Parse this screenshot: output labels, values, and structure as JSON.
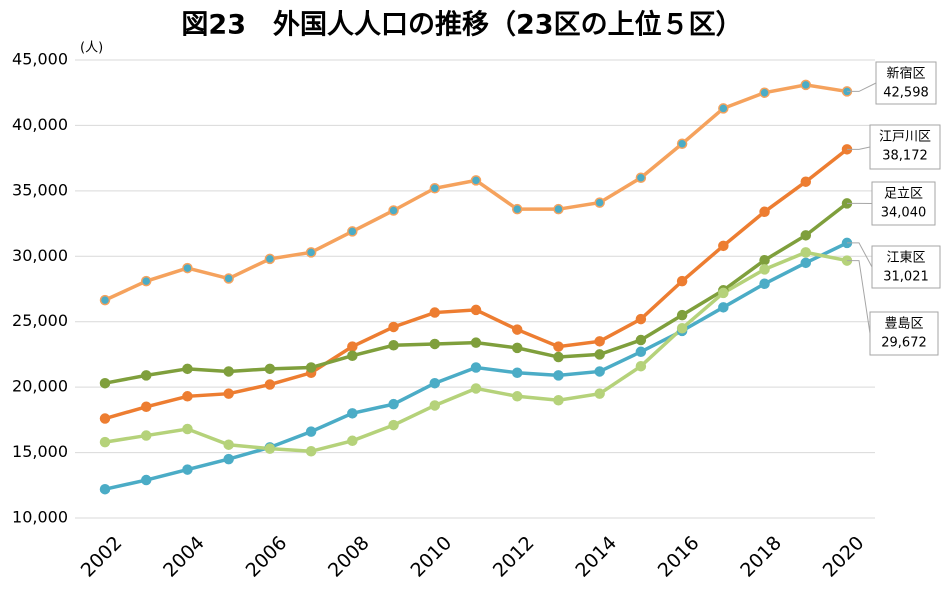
{
  "chart_data": {
    "type": "line",
    "title": "図23　外国人人口の推移（23区の上位５区）",
    "y_unit": "(人)",
    "x": [
      2002,
      2003,
      2004,
      2005,
      2006,
      2007,
      2008,
      2009,
      2010,
      2011,
      2012,
      2013,
      2014,
      2015,
      2016,
      2017,
      2018,
      2019,
      2020
    ],
    "xlim": [
      2002,
      2020
    ],
    "xticks": [
      2002,
      2004,
      2006,
      2008,
      2010,
      2012,
      2014,
      2016,
      2018,
      2020
    ],
    "ylim": [
      10000,
      45000
    ],
    "yticks": [
      {
        "value": 10000,
        "label": "10,000"
      },
      {
        "value": 15000,
        "label": "15,000"
      },
      {
        "value": 20000,
        "label": "20,000"
      },
      {
        "value": 25000,
        "label": "25,000"
      },
      {
        "value": 30000,
        "label": "30,000"
      },
      {
        "value": 35000,
        "label": "35,000"
      },
      {
        "value": 40000,
        "label": "40,000"
      },
      {
        "value": 45000,
        "label": "45,000"
      }
    ],
    "grid": true,
    "series": [
      {
        "name": "新宿区",
        "color": "#f5a25d",
        "marker_color": "#4bacc6",
        "values": [
          26650,
          28100,
          29100,
          28300,
          29800,
          30300,
          31900,
          33500,
          35200,
          35800,
          33600,
          33600,
          34100,
          36000,
          38600,
          41300,
          42500,
          43100,
          42598
        ],
        "value_labels": [
          null,
          null,
          null,
          null,
          null,
          null,
          null,
          null,
          null,
          null,
          null,
          null,
          null,
          null,
          null,
          null,
          null,
          null,
          "42,598"
        ]
      },
      {
        "name": "江戸川区",
        "color": "#ed7d31",
        "marker_color": "#ed7d31",
        "values": [
          17600,
          18500,
          19300,
          19500,
          20200,
          21100,
          23100,
          24600,
          25700,
          25900,
          24400,
          23100,
          23500,
          25200,
          28100,
          30800,
          33400,
          35700,
          38172
        ],
        "value_labels": [
          null,
          null,
          null,
          null,
          null,
          null,
          null,
          null,
          null,
          null,
          null,
          null,
          null,
          null,
          null,
          null,
          null,
          null,
          "38,172"
        ]
      },
      {
        "name": "足立区",
        "color": "#7f9f3c",
        "marker_color": "#7f9f3c",
        "values": [
          20300,
          20900,
          21400,
          21200,
          21400,
          21500,
          22400,
          23200,
          23300,
          23400,
          23000,
          22300,
          22500,
          23600,
          25500,
          27400,
          29700,
          31600,
          34040
        ],
        "value_labels": [
          null,
          null,
          null,
          null,
          null,
          null,
          null,
          null,
          null,
          null,
          null,
          null,
          null,
          null,
          null,
          null,
          null,
          null,
          "34,040"
        ]
      },
      {
        "name": "江東区",
        "color": "#4bacc6",
        "marker_color": "#4bacc6",
        "values": [
          12200,
          12900,
          13700,
          14500,
          15400,
          16600,
          18000,
          18700,
          20300,
          21500,
          21100,
          20900,
          21200,
          22700,
          24300,
          26100,
          27900,
          29500,
          31021
        ],
        "value_labels": [
          null,
          null,
          null,
          null,
          null,
          null,
          null,
          null,
          null,
          null,
          null,
          null,
          null,
          null,
          null,
          null,
          null,
          null,
          "31,021"
        ]
      },
      {
        "name": "豊島区",
        "color": "#b5d27a",
        "marker_color": "#b5d27a",
        "values": [
          15800,
          16300,
          16800,
          15600,
          15300,
          15100,
          15900,
          17100,
          18600,
          19900,
          19300,
          19000,
          19500,
          21600,
          24500,
          27200,
          29000,
          30300,
          29672
        ],
        "value_labels": [
          null,
          null,
          null,
          null,
          null,
          null,
          null,
          null,
          null,
          null,
          null,
          null,
          null,
          null,
          null,
          null,
          null,
          null,
          "29,672"
        ]
      }
    ]
  }
}
